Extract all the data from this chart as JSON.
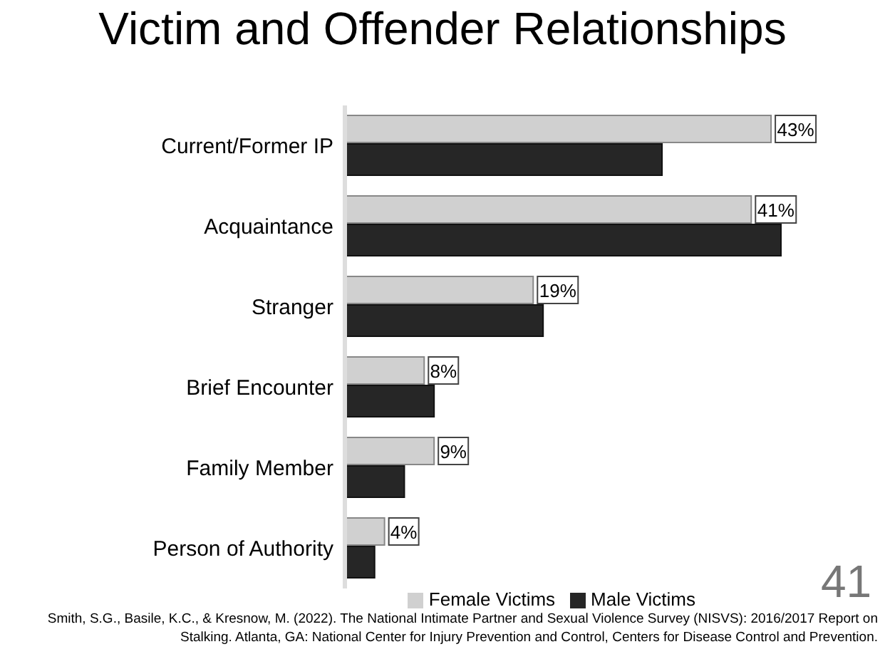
{
  "chart_data": {
    "type": "bar",
    "orientation": "horizontal",
    "title": "Victim and Offender Relationships",
    "categories": [
      "Current/Former IP",
      "Acquaintance",
      "Stranger",
      "Brief Encounter",
      "Family Member",
      "Person of Authority"
    ],
    "series": [
      {
        "name": "Female Victims",
        "color": "#d0d0d0",
        "values": [
          43,
          41,
          19,
          8,
          9,
          4
        ],
        "value_labels": [
          "43%",
          "41%",
          "19%",
          "8%",
          "9%",
          "4%"
        ]
      },
      {
        "name": "Male Victims",
        "color": "#262626",
        "values": [
          32,
          44,
          20,
          9,
          6,
          3
        ]
      }
    ],
    "tick_labels": "y",
    "grid": false,
    "legend": "bottom right",
    "annotations": [
      "41",
      "Smith, S.G., Basile, K.C., & Kresnow, M. (2022). The National Intimate Partner and Sexual Violence Survey (NISVS): 2016/2017 Report on Stalking. Atlanta, GA: National Center for Injury Prevention and Control, Centers for Disease Control and Prevention."
    ]
  }
}
